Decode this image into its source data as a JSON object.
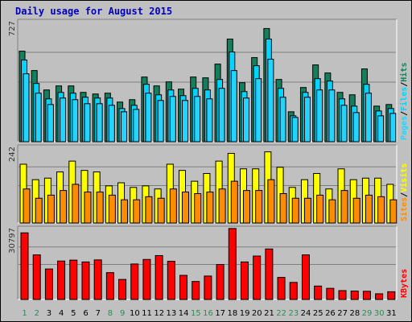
{
  "title": "Daily usage for August 2015",
  "colors": {
    "hits": "#137f5d",
    "files": "#00d4ff",
    "pages": "#24d4ff",
    "visits": "#ffff00",
    "sites": "#ff8c00",
    "kbytes": "#ff0000",
    "panel_bg": "#c0c0c0",
    "weekend_day": "#2e8b57",
    "weekday": "#000000"
  },
  "chart_data": [
    {
      "type": "bar",
      "panel": "hits-files-pages",
      "ymax_label": "727",
      "ylim": [
        0,
        727
      ],
      "legend": [
        "Pages",
        "/",
        "Files",
        "/",
        "Hits"
      ],
      "categories": [
        "1",
        "2",
        "3",
        "4",
        "5",
        "6",
        "7",
        "8",
        "9",
        "10",
        "11",
        "12",
        "13",
        "14",
        "15",
        "16",
        "17",
        "18",
        "19",
        "20",
        "21",
        "22",
        "23",
        "24",
        "25",
        "26",
        "27",
        "28",
        "29",
        "30",
        "31"
      ],
      "weekend_days": [
        "1",
        "2",
        "8",
        "9",
        "15",
        "16",
        "22",
        "23",
        "29",
        "30"
      ],
      "series": [
        {
          "name": "Hits",
          "values": [
            560,
            440,
            320,
            345,
            345,
            305,
            295,
            300,
            245,
            260,
            400,
            345,
            370,
            325,
            400,
            395,
            480,
            635,
            365,
            520,
            700,
            385,
            185,
            335,
            475,
            425,
            305,
            290,
            450,
            220,
            230
          ]
        },
        {
          "name": "Files",
          "values": [
            505,
            360,
            265,
            305,
            300,
            275,
            270,
            270,
            205,
            225,
            355,
            290,
            320,
            285,
            330,
            320,
            385,
            555,
            310,
            470,
            635,
            330,
            160,
            305,
            390,
            375,
            265,
            220,
            355,
            190,
            205
          ]
        },
        {
          "name": "Pages",
          "values": [
            420,
            300,
            230,
            270,
            260,
            235,
            235,
            225,
            185,
            200,
            300,
            255,
            280,
            255,
            280,
            265,
            330,
            440,
            270,
            390,
            510,
            275,
            150,
            275,
            320,
            320,
            225,
            180,
            300,
            160,
            175
          ]
        }
      ]
    },
    {
      "type": "bar",
      "panel": "visits-sites",
      "ymax_label": "242",
      "ylim": [
        0,
        242
      ],
      "legend": [
        "Sites",
        "/",
        "Visits"
      ],
      "categories": [
        "1",
        "2",
        "3",
        "4",
        "5",
        "6",
        "7",
        "8",
        "9",
        "10",
        "11",
        "12",
        "13",
        "14",
        "15",
        "16",
        "17",
        "18",
        "19",
        "20",
        "21",
        "22",
        "23",
        "24",
        "25",
        "26",
        "27",
        "28",
        "29",
        "30",
        "31"
      ],
      "series": [
        {
          "name": "Visits",
          "values": [
            190,
            140,
            145,
            165,
            200,
            170,
            165,
            120,
            130,
            115,
            120,
            110,
            190,
            170,
            135,
            160,
            200,
            225,
            175,
            175,
            230,
            180,
            115,
            140,
            160,
            110,
            175,
            140,
            145,
            145,
            125
          ]
        },
        {
          "name": "Sites",
          "values": [
            110,
            80,
            90,
            105,
            125,
            100,
            100,
            90,
            75,
            75,
            85,
            80,
            110,
            100,
            95,
            100,
            110,
            135,
            105,
            105,
            140,
            95,
            80,
            80,
            90,
            75,
            105,
            80,
            90,
            85,
            75
          ]
        }
      ]
    },
    {
      "type": "bar",
      "panel": "kbytes",
      "ymax_label": "30797",
      "ylim": [
        0,
        30797
      ],
      "legend": [
        "KBytes"
      ],
      "categories": [
        "1",
        "2",
        "3",
        "4",
        "5",
        "6",
        "7",
        "8",
        "9",
        "10",
        "11",
        "12",
        "13",
        "14",
        "15",
        "16",
        "17",
        "18",
        "19",
        "20",
        "21",
        "22",
        "23",
        "24",
        "25",
        "26",
        "27",
        "28",
        "29",
        "30",
        "31"
      ],
      "series": [
        {
          "name": "KBytes",
          "values": [
            29300,
            19600,
            13400,
            16900,
            17300,
            16500,
            17400,
            11800,
            8800,
            15600,
            17600,
            19300,
            16800,
            10600,
            7900,
            10300,
            15400,
            31200,
            16500,
            19100,
            22200,
            9700,
            7500,
            19600,
            5900,
            4900,
            3900,
            3700,
            3600,
            2500,
            3400
          ]
        }
      ]
    }
  ]
}
